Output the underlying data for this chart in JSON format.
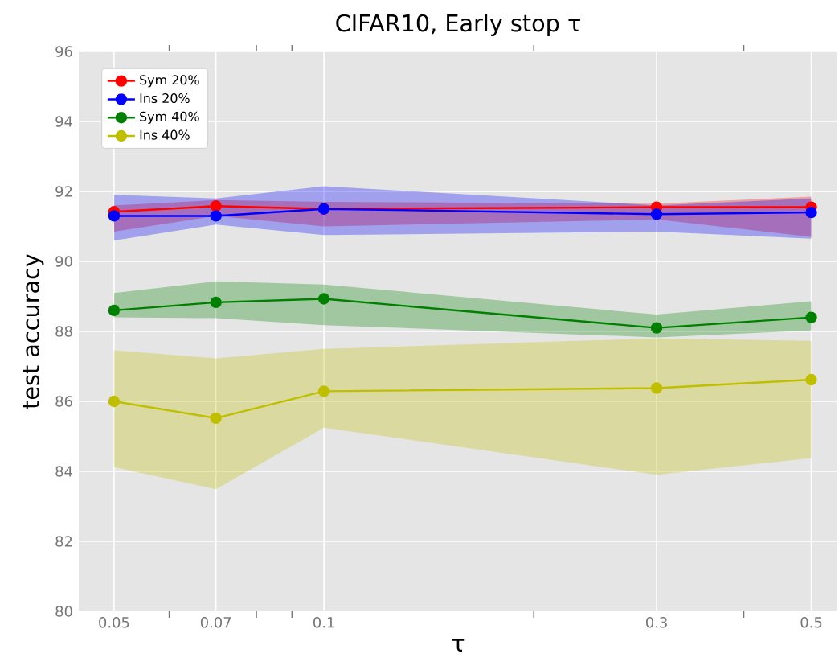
{
  "chart_data": {
    "type": "line",
    "title": "CIFAR10, Early stop τ",
    "xlabel": "τ",
    "ylabel": "test  accuracy",
    "x": [
      0.05,
      0.07,
      0.1,
      0.3,
      0.5
    ],
    "series": [
      {
        "name": "Sym 20%",
        "color": "#ff0000",
        "values": [
          91.42,
          91.58,
          91.5,
          91.55,
          91.55
        ],
        "lower": [
          90.85,
          91.3,
          91.0,
          91.2,
          90.7
        ],
        "upper": [
          91.6,
          91.75,
          91.7,
          91.65,
          91.85
        ]
      },
      {
        "name": "Ins 20%",
        "color": "#0000ff",
        "values": [
          91.3,
          91.3,
          91.5,
          91.35,
          91.4
        ],
        "lower": [
          90.6,
          91.05,
          90.75,
          90.85,
          90.65
        ],
        "upper": [
          91.9,
          91.8,
          92.15,
          91.6,
          91.8
        ]
      },
      {
        "name": "Sym 40%",
        "color": "#008000",
        "values": [
          88.6,
          88.83,
          88.93,
          88.1,
          88.4
        ],
        "lower": [
          88.4,
          88.38,
          88.18,
          87.83,
          88.03
        ],
        "upper": [
          89.1,
          89.43,
          89.34,
          88.48,
          88.86
        ]
      },
      {
        "name": "Ins 40%",
        "color": "#bfbf00",
        "values": [
          86.0,
          85.52,
          86.29,
          86.38,
          86.62
        ],
        "lower": [
          84.12,
          83.49,
          85.25,
          83.9,
          84.38
        ],
        "upper": [
          87.46,
          87.23,
          87.5,
          87.8,
          87.73
        ]
      }
    ],
    "log": "x",
    "xlim": [
      0.0445,
      0.545
    ],
    "xticks": [
      0.05,
      {
        "value": 0.06,
        "label": null
      },
      0.07,
      {
        "value": 0.08,
        "label": null
      },
      {
        "value": 0.09,
        "label": null
      },
      0.1,
      {
        "value": 0.2,
        "label": null
      },
      0.3,
      {
        "value": 0.4,
        "label": null
      },
      0.5
    ],
    "ylim": [
      80,
      96
    ],
    "yticks": [
      80,
      82,
      84,
      86,
      88,
      90,
      92,
      94,
      96
    ],
    "grid": true,
    "legend": "top left",
    "marker": "circle",
    "line_style": "solid"
  }
}
